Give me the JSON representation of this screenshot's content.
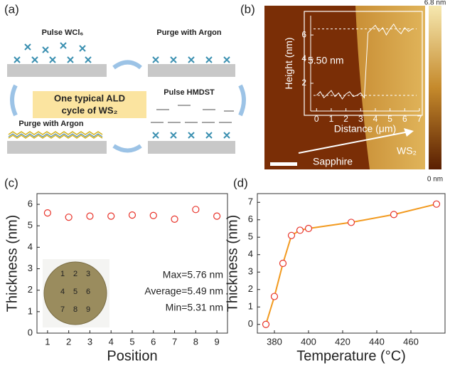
{
  "panel_labels": [
    "(a)",
    "(b)",
    "(c)",
    "(d)"
  ],
  "diagram": {
    "step_1": "Pulse WCl₆",
    "step_2": "Purge with Argon",
    "step_3": "Pulse HMDST",
    "step_4": "Purge with Argon",
    "center_line_1": "One typical ALD",
    "center_line_2": "cycle of WS₂"
  },
  "afm": {
    "scale_max": "6.8 nm",
    "scale_min": "0 nm",
    "step_height": "5.50 nm",
    "substrate": "Sapphire",
    "film": "WS₂"
  },
  "wafer_labels": [
    "1",
    "2",
    "3",
    "4",
    "5",
    "6",
    "7",
    "8",
    "9"
  ],
  "chart_data": [
    {
      "type": "line",
      "xlabel": "Distance (μm)",
      "ylabel": "Height (nm)",
      "color": "#ffffff",
      "x": [
        0,
        0.25,
        0.5,
        0.75,
        1,
        1.25,
        1.5,
        1.75,
        2,
        2.25,
        2.5,
        2.75,
        3,
        3.25,
        3.5,
        3.75,
        4,
        4.25,
        4.5,
        4.75,
        5,
        5.25,
        5.5,
        5.75,
        6,
        6.25,
        6.5
      ],
      "values": [
        1.0,
        1.3,
        0.8,
        1.1,
        1.4,
        0.9,
        1.2,
        0.7,
        1.1,
        1.3,
        0.9,
        1.0,
        1.2,
        0.8,
        6.2,
        6.5,
        6.8,
        6.3,
        6.6,
        6.0,
        6.5,
        6.9,
        6.4,
        6.1,
        6.6,
        6.3,
        6.5
      ],
      "levels": [
        1.0,
        6.5
      ],
      "xlim": [
        -0.4,
        7
      ],
      "xticks": [
        0,
        1,
        2,
        3,
        4,
        5,
        6,
        7
      ],
      "ylim": [
        -0.3,
        7.6
      ],
      "yticks": [
        2,
        4,
        6
      ]
    },
    {
      "type": "scatter",
      "xlabel": "Position",
      "ylabel": "Thickness (nm)",
      "marker_color": "#e8332a",
      "x": [
        1,
        2,
        3,
        4,
        5,
        6,
        7,
        8,
        9
      ],
      "values": [
        5.6,
        5.4,
        5.45,
        5.45,
        5.5,
        5.48,
        5.31,
        5.76,
        5.45
      ],
      "annotations": [
        "Max=5.76 nm",
        "Average=5.49 nm",
        "Min=5.31 nm"
      ],
      "xlim": [
        0.5,
        9.5
      ],
      "xticks": [
        1,
        2,
        3,
        4,
        5,
        6,
        7,
        8,
        9
      ],
      "ylim": [
        0,
        6.5
      ],
      "yticks": [
        0,
        1,
        2,
        3,
        4,
        5,
        6
      ]
    },
    {
      "type": "line",
      "xlabel": "Temperature (°C)",
      "ylabel": "Thickness (nm)",
      "color": "#f29a1f",
      "marker_color": "#e8332a",
      "x": [
        375,
        380,
        385,
        390,
        395,
        400,
        425,
        450,
        475
      ],
      "values": [
        0,
        1.6,
        3.5,
        5.1,
        5.4,
        5.5,
        5.85,
        6.3,
        6.9
      ],
      "xlim": [
        370,
        480
      ],
      "xticks": [
        380,
        400,
        420,
        440,
        460
      ],
      "ylim": [
        -0.5,
        7.5
      ],
      "yticks": [
        0,
        1,
        2,
        3,
        4,
        5,
        6,
        7
      ]
    }
  ]
}
